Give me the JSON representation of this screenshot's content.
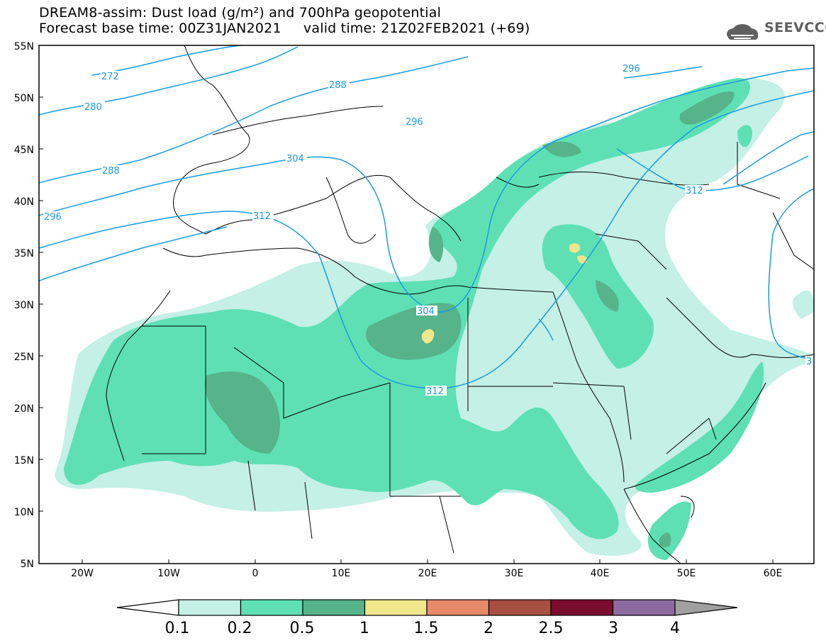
{
  "title": {
    "line1": "DREAM8-assim: Dust load (g/m²) and 700hPa geopotential",
    "line2": "Forecast base time: 00Z31JAN2021     valid time: 21Z02FEB2021 (+69)"
  },
  "logo": {
    "text": "SEEVCCC",
    "icon": "cloud-icon"
  },
  "lat_labels": [
    "55N",
    "50N",
    "45N",
    "40N",
    "35N",
    "30N",
    "25N",
    "20N",
    "15N",
    "10N",
    "5N"
  ],
  "lon_labels": [
    "20W",
    "10W",
    "0",
    "10E",
    "20E",
    "30E",
    "40E",
    "50E",
    "60E"
  ],
  "contour_labels": [
    "272",
    "280",
    "288",
    "296",
    "304",
    "312",
    "288",
    "296",
    "312",
    "304",
    "312",
    "296",
    "312",
    "3"
  ],
  "colorbar": {
    "labels": [
      "0.1",
      "0.2",
      "0.5",
      "1",
      "1.5",
      "2",
      "2.5",
      "3",
      "4"
    ],
    "colors": [
      "#c4f0e6",
      "#5ee0b4",
      "#56b38a",
      "#f0e68c",
      "#e8896a",
      "#a84f42",
      "#7a0c2e",
      "#8d6a9f",
      "#a0a0a0"
    ]
  },
  "dust_colors": {
    "light": "#c4f0e6",
    "medium": "#5ee0b4",
    "dark": "#56b38a",
    "yellow": "#f0e68c"
  },
  "contour_color": "#1a9be0",
  "map_extent": {
    "lon": [
      -25,
      65
    ],
    "lat": [
      5,
      55
    ]
  }
}
